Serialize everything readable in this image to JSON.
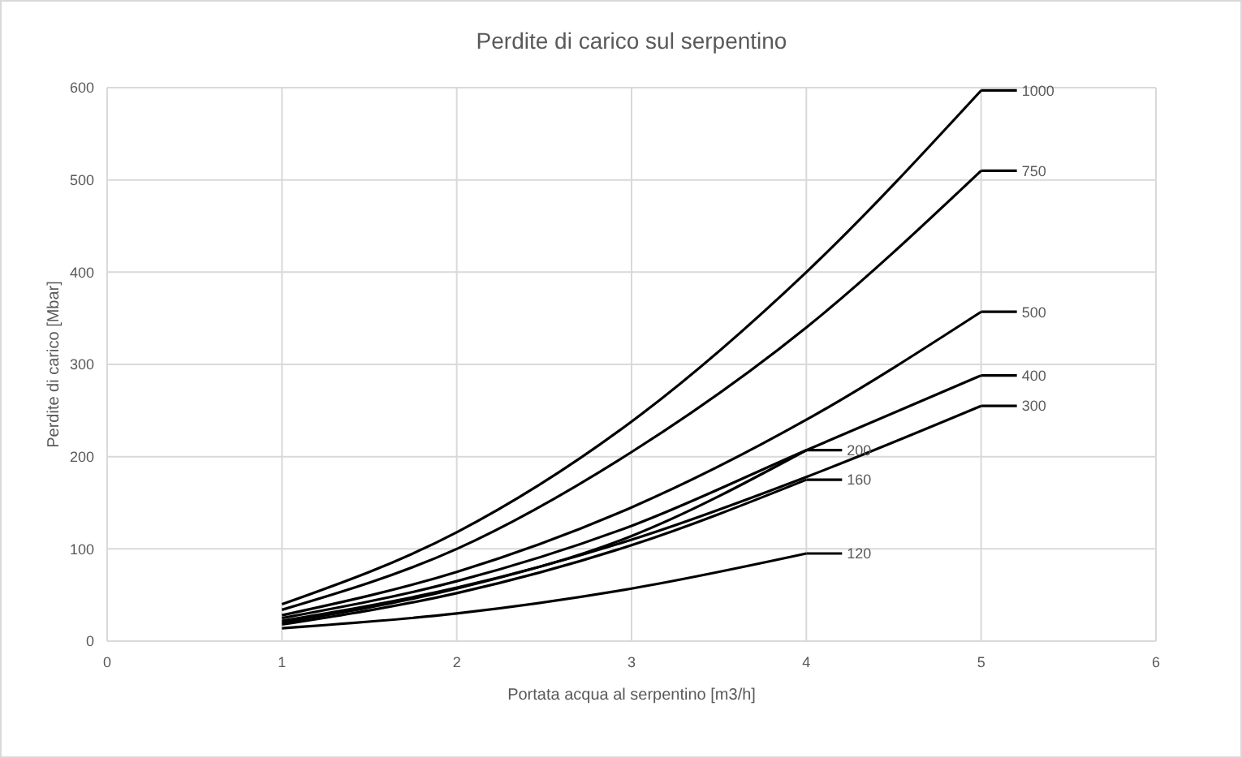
{
  "chart_data": {
    "type": "line",
    "title": "Perdite di carico sul serpentino",
    "xlabel": "Portata acqua al serpentino [m3/h]",
    "ylabel": "Perdite di carico [Mbar]",
    "xlim": [
      0,
      6
    ],
    "xticks": [
      0,
      1,
      2,
      3,
      4,
      5,
      6
    ],
    "ylim": [
      0,
      600
    ],
    "yticks": [
      0,
      100,
      200,
      300,
      400,
      500,
      600
    ],
    "grid": true,
    "legend": "right",
    "marker": "none",
    "line_style": "solid",
    "series": [
      {
        "name": "1000",
        "color": "#000000",
        "x": [
          1,
          2,
          3,
          4,
          5
        ],
        "values": [
          40,
          118,
          238,
          400,
          597
        ]
      },
      {
        "name": "750",
        "color": "#000000",
        "x": [
          1,
          2,
          3,
          4,
          5
        ],
        "values": [
          34,
          100,
          205,
          340,
          510
        ]
      },
      {
        "name": "500",
        "color": "#000000",
        "x": [
          1,
          2,
          3,
          4,
          5
        ],
        "values": [
          28,
          75,
          145,
          240,
          357
        ]
      },
      {
        "name": "400",
        "color": "#000000",
        "x": [
          1,
          2,
          3,
          4,
          5
        ],
        "values": [
          25,
          65,
          125,
          207,
          288
        ]
      },
      {
        "name": "300",
        "color": "#000000",
        "x": [
          1,
          2,
          3,
          4,
          5
        ],
        "values": [
          22,
          58,
          110,
          178,
          255
        ]
      },
      {
        "name": "200",
        "color": "#000000",
        "x": [
          1,
          2,
          3,
          4
        ],
        "values": [
          20,
          57,
          114,
          207
        ]
      },
      {
        "name": "160",
        "color": "#000000",
        "x": [
          1,
          2,
          3,
          4
        ],
        "values": [
          18,
          52,
          104,
          175
        ]
      },
      {
        "name": "120",
        "color": "#000000",
        "x": [
          1,
          2,
          3,
          4
        ],
        "values": [
          14,
          30,
          57,
          95
        ]
      }
    ]
  }
}
